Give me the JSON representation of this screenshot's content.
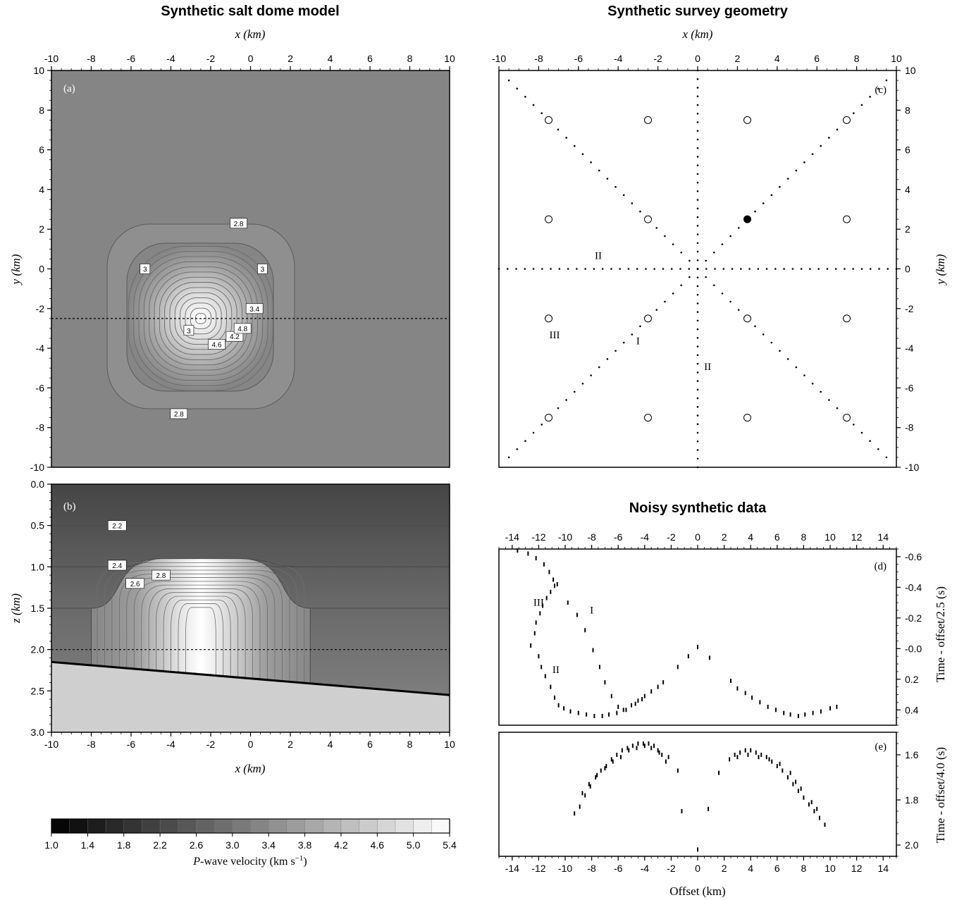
{
  "titles": {
    "left": "Synthetic salt dome model",
    "right_top": "Synthetic survey geometry",
    "right_bottom": "Noisy synthetic data"
  },
  "chart_data": [
    {
      "id": "a",
      "type": "heatmap",
      "panel_label": "(a)",
      "xlabel": "x (km)",
      "ylabel": "y (km)",
      "xlim": [
        -10,
        10
      ],
      "ylim": [
        -10,
        10
      ],
      "xticks": [
        -10,
        -8,
        -6,
        -4,
        -2,
        0,
        2,
        4,
        6,
        8,
        10
      ],
      "yticks": [
        -10,
        -8,
        -6,
        -4,
        -2,
        0,
        2,
        4,
        6,
        8,
        10
      ],
      "dome_center": [
        -2.5,
        -2.5
      ],
      "profile_line_y": -2.5,
      "contour_labels": [
        {
          "text": "2.8",
          "x": -0.6,
          "y": 2.3
        },
        {
          "text": "3",
          "x": -5.3,
          "y": 0.0
        },
        {
          "text": "3",
          "x": 0.6,
          "y": 0.0
        },
        {
          "text": "2.8",
          "x": -3.6,
          "y": -7.3
        },
        {
          "text": "3",
          "x": -3.1,
          "y": -3.1
        },
        {
          "text": "4.6",
          "x": -1.7,
          "y": -3.8
        },
        {
          "text": "4.2",
          "x": -0.8,
          "y": -3.4
        },
        {
          "text": "4.8",
          "x": -0.4,
          "y": -3.0
        },
        {
          "text": "3.4",
          "x": 0.2,
          "y": -2.0
        }
      ]
    },
    {
      "id": "b",
      "type": "heatmap",
      "panel_label": "(b)",
      "xlabel": "x (km)",
      "ylabel": "z (km)",
      "xlim": [
        -10,
        10
      ],
      "zlim": [
        0.0,
        3.0
      ],
      "xticks": [
        -10,
        -8,
        -6,
        -4,
        -2,
        0,
        2,
        4,
        6,
        8,
        10
      ],
      "zticks": [
        "0.0",
        "0.5",
        "1.0",
        "1.5",
        "2.0",
        "2.5",
        "3.0"
      ],
      "profile_line_z": 2.0,
      "basement_line": {
        "x": [
          -10,
          10
        ],
        "z": [
          2.15,
          2.55
        ]
      },
      "contour_labels": [
        {
          "text": "2.2",
          "x": -6.7,
          "z": 0.5
        },
        {
          "text": "2.4",
          "x": -6.7,
          "z": 0.98
        },
        {
          "text": "2.6",
          "x": -5.8,
          "z": 1.2
        },
        {
          "text": "2.8",
          "x": -4.5,
          "z": 1.1
        }
      ]
    },
    {
      "id": "colorbar",
      "type": "colorbar",
      "label": "P-wave velocity (km s−1)",
      "label_italic": "P",
      "label_rest": "-wave velocity (km s",
      "label_sup": "−1",
      "label_close": ")",
      "ticks": [
        "1.0",
        "1.4",
        "1.8",
        "2.2",
        "2.6",
        "3.0",
        "3.4",
        "3.8",
        "4.2",
        "4.6",
        "5.0",
        "5.4"
      ],
      "range": [
        1.0,
        5.4
      ]
    },
    {
      "id": "c",
      "type": "scatter",
      "panel_label": "(c)",
      "xlabel": "x (km)",
      "ylabel": "y (km)",
      "xlim": [
        -10,
        10
      ],
      "ylim": [
        -10,
        10
      ],
      "xticks": [
        -10,
        -8,
        -6,
        -4,
        -2,
        0,
        2,
        4,
        6,
        8,
        10
      ],
      "yticks": [
        -10,
        -8,
        -6,
        -4,
        -2,
        0,
        2,
        4,
        6,
        8,
        10
      ],
      "receivers": [
        [
          -7.5,
          7.5
        ],
        [
          -2.5,
          7.5
        ],
        [
          2.5,
          7.5
        ],
        [
          7.5,
          7.5
        ],
        [
          -7.5,
          2.5
        ],
        [
          -2.5,
          2.5
        ],
        [
          7.5,
          2.5
        ],
        [
          -7.5,
          -2.5
        ],
        [
          -2.5,
          -2.5
        ],
        [
          2.5,
          -2.5
        ],
        [
          7.5,
          -2.5
        ],
        [
          -7.5,
          -7.5
        ],
        [
          -2.5,
          -7.5
        ],
        [
          2.5,
          -7.5
        ],
        [
          7.5,
          -7.5
        ]
      ],
      "highlighted_receiver": [
        2.5,
        2.5
      ],
      "shot_lines": [
        {
          "from": [
            -10,
            0
          ],
          "to": [
            10,
            0
          ]
        },
        {
          "from": [
            0,
            -10
          ],
          "to": [
            0,
            10
          ]
        },
        {
          "from": [
            -9.5,
            -9.5
          ],
          "to": [
            9.5,
            9.5
          ]
        },
        {
          "from": [
            -9.5,
            9.5
          ],
          "to": [
            9.5,
            -9.5
          ]
        }
      ],
      "line_labels": [
        {
          "text": "II",
          "x": -5.0,
          "y": 0.5
        },
        {
          "text": "III",
          "x": -7.2,
          "y": -3.5
        },
        {
          "text": "I",
          "x": -3.0,
          "y": -3.8
        },
        {
          "text": "II",
          "x": 0.5,
          "y": -5.1
        }
      ]
    },
    {
      "id": "d",
      "type": "scatter",
      "panel_label": "(d)",
      "xlabel": "Offset (km)",
      "ylabel": "Time - offset/2.5 (s)",
      "xlim": [
        -15,
        15
      ],
      "ylim": [
        -0.65,
        0.5
      ],
      "xticks": [
        -14,
        -12,
        -10,
        -8,
        -6,
        -4,
        -2,
        0,
        2,
        4,
        6,
        8,
        10,
        12,
        14
      ],
      "yticks": [
        "-0.6",
        "-0.4",
        "-0.2",
        "-0.0",
        "0.2",
        "0.4"
      ],
      "branch_labels": [
        {
          "text": "III",
          "x": -12.0,
          "y": -0.28
        },
        {
          "text": "I",
          "x": -8.0,
          "y": -0.23
        },
        {
          "text": "II",
          "x": -10.7,
          "y": 0.16
        }
      ],
      "series": [
        {
          "points": [
            [
              -13.6,
              -0.64
            ],
            [
              -12.8,
              -0.62
            ],
            [
              -12.2,
              -0.59
            ],
            [
              -11.6,
              -0.55
            ],
            [
              -11.2,
              -0.5
            ],
            [
              -10.9,
              -0.45
            ],
            [
              -10.8,
              -0.41
            ],
            [
              -11.1,
              -0.37
            ],
            [
              -11.4,
              -0.33
            ],
            [
              -11.7,
              -0.28
            ],
            [
              -11.9,
              -0.23
            ],
            [
              -12.2,
              -0.17
            ],
            [
              -12.3,
              -0.1
            ],
            [
              -12.6,
              -0.02
            ],
            [
              -12.0,
              0.05
            ],
            [
              -11.8,
              0.12
            ],
            [
              -11.5,
              0.18
            ],
            [
              -11.1,
              0.25
            ],
            [
              -10.8,
              0.32
            ],
            [
              -10.5,
              0.37
            ],
            [
              -10.1,
              0.39
            ],
            [
              -9.6,
              0.41
            ],
            [
              -9.0,
              0.42
            ],
            [
              -8.4,
              0.43
            ],
            [
              -7.8,
              0.44
            ],
            [
              -7.2,
              0.44
            ],
            [
              -6.7,
              0.43
            ],
            [
              -6.1,
              0.42
            ],
            [
              -5.6,
              0.4
            ],
            [
              -5.0,
              0.37
            ],
            [
              -4.5,
              0.34
            ],
            [
              -4.0,
              0.31
            ],
            [
              -3.5,
              0.28
            ],
            [
              -3.0,
              0.25
            ],
            [
              -2.6,
              0.22
            ],
            [
              -1.5,
              0.12
            ],
            [
              -0.7,
              0.05
            ],
            [
              0.0,
              -0.01
            ],
            [
              0.9,
              0.06
            ],
            [
              2.5,
              0.21
            ],
            [
              3.0,
              0.26
            ],
            [
              3.6,
              0.29
            ],
            [
              4.1,
              0.32
            ],
            [
              4.7,
              0.35
            ],
            [
              5.3,
              0.38
            ],
            [
              5.9,
              0.4
            ],
            [
              6.5,
              0.42
            ],
            [
              7.0,
              0.43
            ],
            [
              7.6,
              0.44
            ],
            [
              8.1,
              0.43
            ],
            [
              8.7,
              0.42
            ],
            [
              9.3,
              0.41
            ],
            [
              10.0,
              0.39
            ],
            [
              10.5,
              0.38
            ],
            [
              -10.6,
              -0.42
            ],
            [
              -9.8,
              -0.3
            ],
            [
              -9.1,
              -0.22
            ],
            [
              -8.5,
              -0.12
            ],
            [
              -7.9,
              0.01
            ],
            [
              -7.4,
              0.12
            ],
            [
              -7.0,
              0.22
            ],
            [
              -6.5,
              0.31
            ],
            [
              -6.0,
              0.38
            ],
            [
              -5.4,
              0.4
            ],
            [
              -4.7,
              0.36
            ],
            [
              -4.2,
              0.33
            ]
          ]
        }
      ]
    },
    {
      "id": "e",
      "type": "scatter",
      "panel_label": "(e)",
      "xlabel": "Offset (km)",
      "ylabel": "Time - offset/4.0 (s)",
      "xlim": [
        -15,
        15
      ],
      "ylim": [
        1.5,
        2.05
      ],
      "xticks": [
        -14,
        -12,
        -10,
        -8,
        -6,
        -4,
        -2,
        0,
        2,
        4,
        6,
        8,
        10,
        12,
        14
      ],
      "yticks": [
        "1.6",
        "1.8",
        "2.0"
      ],
      "series": [
        {
          "points": [
            [
              -9.3,
              1.86
            ],
            [
              -8.9,
              1.83
            ],
            [
              -8.5,
              1.78
            ],
            [
              -8.1,
              1.74
            ],
            [
              -7.7,
              1.7
            ],
            [
              -7.3,
              1.67
            ],
            [
              -6.9,
              1.65
            ],
            [
              -6.5,
              1.62
            ],
            [
              -6.1,
              1.6
            ],
            [
              -5.7,
              1.58
            ],
            [
              -5.3,
              1.57
            ],
            [
              -4.9,
              1.56
            ],
            [
              -4.5,
              1.55
            ],
            [
              -4.1,
              1.55
            ],
            [
              -3.7,
              1.55
            ],
            [
              -3.3,
              1.56
            ],
            [
              -3.0,
              1.58
            ],
            [
              -2.7,
              1.6
            ],
            [
              -2.4,
              1.63
            ],
            [
              -1.5,
              1.67
            ],
            [
              -2.2,
              1.61
            ],
            [
              -2.9,
              1.59
            ],
            [
              -3.5,
              1.57
            ],
            [
              -4.0,
              1.56
            ],
            [
              -4.6,
              1.57
            ],
            [
              -5.2,
              1.58
            ],
            [
              -5.8,
              1.61
            ],
            [
              -6.4,
              1.63
            ],
            [
              -7.0,
              1.66
            ],
            [
              -7.6,
              1.69
            ],
            [
              -8.2,
              1.73
            ],
            [
              -8.7,
              1.77
            ],
            [
              -1.2,
              1.85
            ],
            [
              0.0,
              2.02
            ],
            [
              0.8,
              1.84
            ],
            [
              1.6,
              1.68
            ],
            [
              2.4,
              1.62
            ],
            [
              2.8,
              1.6
            ],
            [
              3.2,
              1.59
            ],
            [
              3.6,
              1.58
            ],
            [
              4.0,
              1.58
            ],
            [
              4.4,
              1.59
            ],
            [
              4.8,
              1.6
            ],
            [
              5.2,
              1.61
            ],
            [
              5.6,
              1.63
            ],
            [
              6.0,
              1.65
            ],
            [
              6.4,
              1.67
            ],
            [
              6.8,
              1.7
            ],
            [
              7.2,
              1.73
            ],
            [
              7.6,
              1.76
            ],
            [
              8.0,
              1.79
            ],
            [
              8.4,
              1.82
            ],
            [
              8.8,
              1.85
            ],
            [
              9.2,
              1.88
            ],
            [
              9.6,
              1.91
            ],
            [
              3.0,
              1.61
            ],
            [
              3.8,
              1.6
            ],
            [
              4.6,
              1.61
            ],
            [
              5.4,
              1.62
            ],
            [
              6.2,
              1.64
            ],
            [
              7.0,
              1.68
            ],
            [
              7.4,
              1.72
            ],
            [
              7.8,
              1.75
            ],
            [
              8.6,
              1.81
            ],
            [
              9.0,
              1.84
            ]
          ]
        }
      ]
    }
  ]
}
